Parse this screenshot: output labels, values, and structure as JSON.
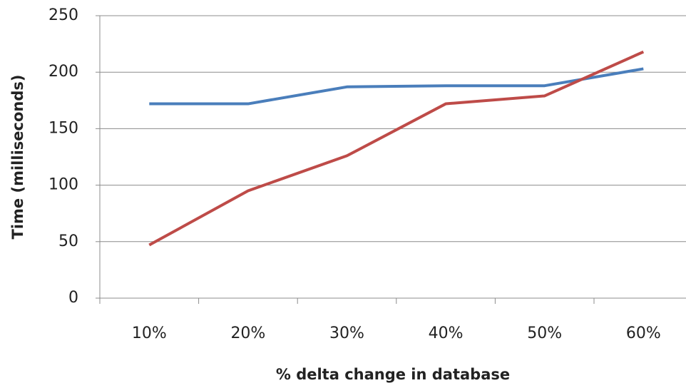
{
  "chart_data": {
    "type": "line",
    "x_label": "% delta change in database",
    "y_label": "Time (milliseconds)",
    "categories": [
      "10%",
      "20%",
      "30%",
      "40%",
      "50%",
      "60%"
    ],
    "series": [
      {
        "color": "#4a7ebb",
        "values": [
          172,
          172,
          187,
          188,
          188,
          203
        ]
      },
      {
        "color": "#be4b48",
        "values": [
          47,
          95,
          126,
          172,
          179,
          218
        ]
      }
    ],
    "ylim": [
      0,
      250
    ],
    "yticks": [
      0,
      50,
      100,
      150,
      200,
      250
    ],
    "grid": true
  }
}
